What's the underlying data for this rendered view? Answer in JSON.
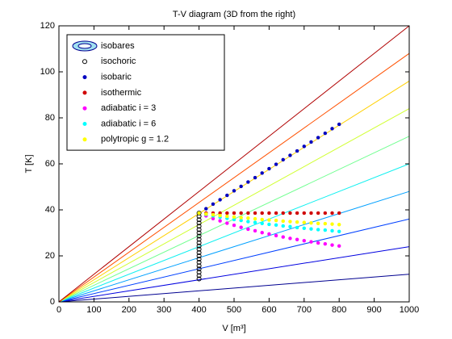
{
  "chart_data": {
    "type": "line",
    "title": "T-V diagram (3D from the right)",
    "x_label": "V [m³]",
    "y_label": "T [K]",
    "xlim": [
      0,
      1000
    ],
    "ylim": [
      0,
      120
    ],
    "xticks": [
      0,
      100,
      200,
      300,
      400,
      500,
      600,
      700,
      800,
      900,
      1000
    ],
    "yticks": [
      0,
      20,
      40,
      60,
      80,
      100,
      120
    ],
    "legend_position": "upper-left",
    "series": [
      {
        "name": "isobares",
        "marker": "contour",
        "x": [
          0,
          1000
        ],
        "lines": [
          {
            "color": "#000090",
            "values": [
              0,
              12
            ]
          },
          {
            "color": "#0000e0",
            "values": [
              0,
              24
            ]
          },
          {
            "color": "#0040ff",
            "values": [
              0,
              36
            ]
          },
          {
            "color": "#00a0ff",
            "values": [
              0,
              48
            ]
          },
          {
            "color": "#10f0f0",
            "values": [
              0,
              60
            ]
          },
          {
            "color": "#70ff90",
            "values": [
              0,
              72
            ]
          },
          {
            "color": "#d0ff30",
            "values": [
              0,
              84
            ]
          },
          {
            "color": "#ffd000",
            "values": [
              0,
              96
            ]
          },
          {
            "color": "#ff5000",
            "values": [
              0,
              108
            ]
          },
          {
            "color": "#b00000",
            "values": [
              0,
              120
            ]
          }
        ]
      },
      {
        "name": "isochoric",
        "marker": "circle",
        "color": "#000000",
        "x": [
          400,
          400,
          400,
          400,
          400,
          400,
          400,
          400,
          400,
          400,
          400,
          400,
          400,
          400,
          400,
          400,
          400,
          400,
          400,
          400,
          400
        ],
        "values": [
          10,
          11.4,
          12.9,
          14.3,
          15.7,
          17.2,
          18.6,
          20,
          21.4,
          22.9,
          24.3,
          25.7,
          27.2,
          28.6,
          30,
          31.4,
          32.9,
          34.3,
          35.7,
          37.2,
          38.6
        ]
      },
      {
        "name": "isobaric",
        "marker": "dot",
        "color": "#0000c0",
        "x": [
          400,
          420,
          440,
          460,
          480,
          500,
          520,
          540,
          560,
          580,
          600,
          620,
          640,
          660,
          680,
          700,
          720,
          740,
          760,
          780,
          800
        ],
        "values": [
          38.6,
          40.5,
          42.5,
          44.4,
          46.3,
          48.3,
          50.2,
          52.1,
          54,
          56,
          57.9,
          59.8,
          61.8,
          63.7,
          65.6,
          67.6,
          69.5,
          71.4,
          73.3,
          75.3,
          77.2
        ]
      },
      {
        "name": "isothermic",
        "marker": "dot",
        "color": "#d00000",
        "x": [
          400,
          420,
          440,
          460,
          480,
          500,
          520,
          540,
          560,
          580,
          600,
          620,
          640,
          660,
          680,
          700,
          720,
          740,
          760,
          780,
          800
        ],
        "values": [
          38.6,
          38.6,
          38.6,
          38.6,
          38.6,
          38.6,
          38.6,
          38.6,
          38.6,
          38.6,
          38.6,
          38.6,
          38.6,
          38.6,
          38.6,
          38.6,
          38.6,
          38.6,
          38.6,
          38.6,
          38.6
        ]
      },
      {
        "name": "adiabatic i = 3",
        "marker": "dot",
        "color": "#ff00ff",
        "x": [
          400,
          420,
          440,
          460,
          480,
          500,
          520,
          540,
          560,
          580,
          600,
          620,
          640,
          660,
          680,
          700,
          720,
          740,
          760,
          780,
          800
        ],
        "values": [
          38.6,
          37.4,
          36.2,
          35.2,
          34.2,
          33.3,
          32.4,
          31.6,
          30.9,
          30.1,
          29.5,
          28.8,
          28.2,
          27.6,
          27.1,
          26.6,
          26.1,
          25.6,
          25.2,
          24.7,
          24.3
        ]
      },
      {
        "name": "adiabatic i = 6",
        "marker": "dot",
        "color": "#00ffff",
        "x": [
          400,
          420,
          440,
          460,
          480,
          500,
          520,
          540,
          560,
          580,
          600,
          620,
          640,
          660,
          680,
          700,
          720,
          740,
          760,
          780,
          800
        ],
        "values": [
          38.6,
          38,
          37.4,
          36.8,
          36.3,
          35.8,
          35.4,
          34.9,
          34.5,
          34.1,
          33.7,
          33.4,
          33,
          32.7,
          32.3,
          32,
          31.7,
          31.4,
          31.2,
          30.9,
          30.6
        ]
      },
      {
        "name": "polytropic g = 1.2",
        "marker": "dot",
        "color": "#ffff00",
        "x": [
          400,
          420,
          440,
          460,
          480,
          500,
          520,
          540,
          560,
          580,
          600,
          620,
          640,
          660,
          680,
          700,
          720,
          740,
          760,
          780,
          800
        ],
        "values": [
          38.6,
          38.2,
          37.9,
          37.5,
          37.2,
          36.9,
          36.6,
          36.4,
          36.1,
          35.8,
          35.6,
          35.4,
          35.1,
          34.9,
          34.7,
          34.5,
          34.3,
          34.1,
          34,
          33.8,
          33.6
        ]
      }
    ]
  }
}
